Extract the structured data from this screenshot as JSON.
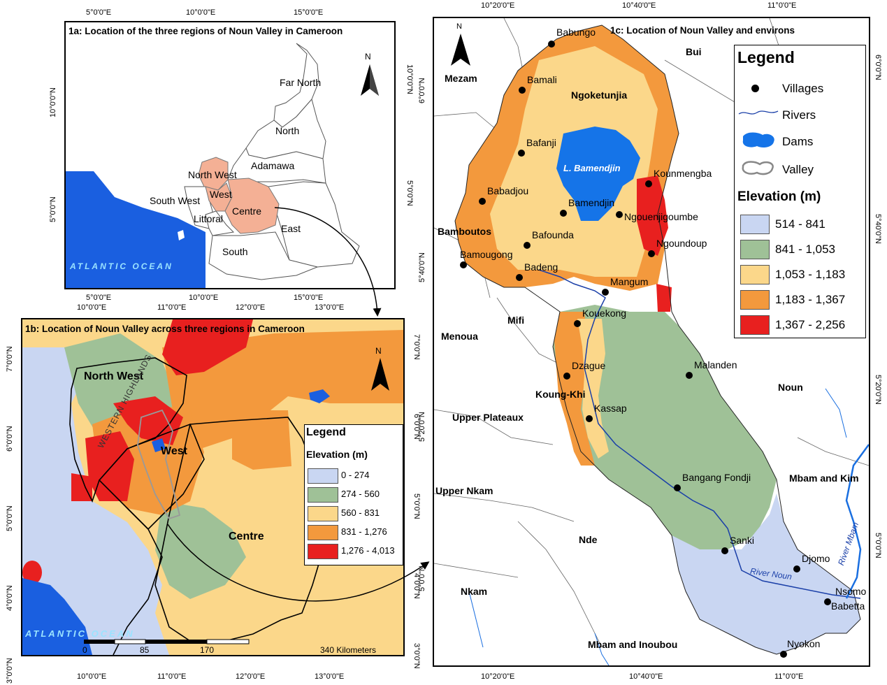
{
  "panel_a": {
    "title": "1a: Location of the three regions of Noun Valley in Cameroon",
    "regions": [
      "Far North",
      "North",
      "Adamawa",
      "North West",
      "West",
      "South West",
      "Littoral",
      "Centre",
      "East",
      "South"
    ],
    "ocean": "ATLANTIC  OCEAN",
    "top_coords": [
      "5°0'0\"E",
      "10°0'0\"E",
      "15°0'0\"E"
    ],
    "bottom_coords": [
      "5°0'0\"E",
      "10°0'0\"E",
      "15°0'0\"E"
    ],
    "left_coords": [
      "10°0'0\"N",
      "5°0'0\"N"
    ],
    "right_coords": [
      "10°0'0\"N",
      "5°0'0\"N"
    ],
    "north": "N",
    "colors": {
      "ocean": "#1a5fe0",
      "highlight": "#f4b095",
      "land": "#ffffff"
    }
  },
  "panel_b": {
    "title": "1b: Location of Noun Valley across three regions in Cameroon",
    "regions": [
      "North West",
      "West",
      "Centre"
    ],
    "highlands": "WESTERN HIGHLANDS",
    "ocean": "ATLANTIC  OCEAN",
    "scale": [
      "0",
      "85",
      "170",
      "340 Kilometers"
    ],
    "top_coords": [
      "10°0'0\"E",
      "11°0'0\"E",
      "12°0'0\"E",
      "13°0'0\"E"
    ],
    "bottom_coords": [
      "10°0'0\"E",
      "11°0'0\"E",
      "12°0'0\"E",
      "13°0'0\"E"
    ],
    "left_coords": [
      "7°0'0\"N",
      "6°0'0\"N",
      "5°0'0\"N",
      "4°0'0\"N",
      "3°0'0\"N"
    ],
    "right_coords": [
      "7°0'0\"N",
      "6°0'0\"N",
      "5°0'0\"N",
      "4°0'0\"N",
      "3°0'0\"N"
    ],
    "north": "N",
    "legend": {
      "title": "Legend",
      "subtitle": "Elevation (m)",
      "classes": [
        {
          "label": "0 - 274",
          "color": "#c9d6f2"
        },
        {
          "label": "274 - 560",
          "color": "#9fc197"
        },
        {
          "label": "560 - 831",
          "color": "#fbd78a"
        },
        {
          "label": "831 - 1,276",
          "color": "#f3993d"
        },
        {
          "label": "1,276 - 4,013",
          "color": "#e8201f"
        }
      ]
    }
  },
  "panel_c": {
    "title": "1c: Location of Noun Valley and environs",
    "dam_label": "L. Bamendjin",
    "river_noun": "River Noun",
    "river_mbam": "River Mbam",
    "divisions": [
      "Bui",
      "Mezam",
      "Ngoketunjia",
      "Bamboutos",
      "Mifi",
      "Menoua",
      "Koung-Khi",
      "Upper Plateaux",
      "Upper Nkam",
      "Nde",
      "Nkam",
      "Noun",
      "Mbam and Kim",
      "Mbam and Inoubou"
    ],
    "villages": [
      "Babungo",
      "Bamali",
      "Bafanji",
      "Kounmengba",
      "Babadjou",
      "Bamendjin",
      "Ngouenjigoumbe",
      "Bafounda",
      "Ngoundoup",
      "Bamougong",
      "Badeng",
      "Mangum",
      "Kouekong",
      "Malanden",
      "Dzague",
      "Kassap",
      "Bangang Fondji",
      "Sanki",
      "Djomo",
      "Nsomo",
      "Babetta",
      "Nyokon"
    ],
    "top_coords": [
      "10°20'0\"E",
      "10°40'0\"E",
      "11°0'0\"E"
    ],
    "bottom_coords": [
      "10°20'0\"E",
      "10°40'0\"E",
      "11°0'0\"E"
    ],
    "left_coords": [
      "6°0'0\"N",
      "5°40'0\"N",
      "5°20'0\"N",
      "5°0'0\"N"
    ],
    "right_coords": [
      "6°0'0\"N",
      "5°40'0\"N",
      "5°20'0\"N",
      "5°0'0\"N"
    ],
    "north": "N",
    "legend": {
      "title": "Legend",
      "items": [
        "Villages",
        "Rivers",
        "Dams",
        "Valley"
      ],
      "subtitle": "Elevation (m)",
      "classes": [
        {
          "label": "514 - 841",
          "color": "#c9d6f2"
        },
        {
          "label": "841 - 1,053",
          "color": "#9fc197"
        },
        {
          "label": "1,053 - 1,183",
          "color": "#fbd78a"
        },
        {
          "label": "1,183 - 1,367",
          "color": "#f3993d"
        },
        {
          "label": "1,367 - 2,256",
          "color": "#e8201f"
        }
      ]
    }
  }
}
